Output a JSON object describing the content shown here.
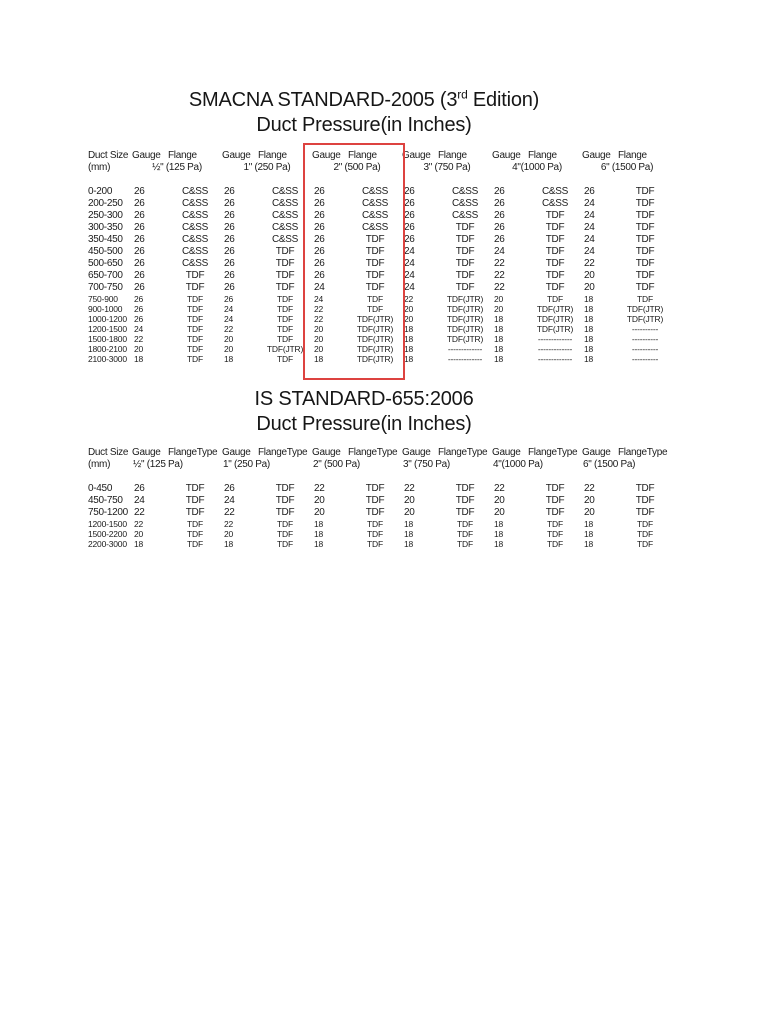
{
  "page": {
    "background": "#ffffff",
    "text_color": "#1b1b1b"
  },
  "highlight": {
    "box_color": "#dd4340",
    "around": "2\" (500 Pa) column group"
  },
  "table1": {
    "title_prefix": "SMACNA STANDARD-2005 (3",
    "title_sup": "rd",
    "title_suffix": " Edition)",
    "subtitle": "Duct Pressure(in Inches)",
    "col_size_label": "Duct Size",
    "col_size_unit": "(mm)",
    "gauge_label": "Gauge",
    "flange_label": "Flange",
    "pressures": [
      "½\" (125 Pa)",
      "1\" (250 Pa)",
      "2\" (500 Pa)",
      "3\" (750 Pa)",
      "4\"(1000 Pa)",
      "6\" (1500 Pa)"
    ],
    "rows_large": [
      {
        "size": "0-200",
        "cells": [
          "26",
          "C&SS",
          "26",
          "C&SS",
          "26",
          "C&SS",
          "26",
          "C&SS",
          "26",
          "C&SS",
          "26",
          "TDF"
        ]
      },
      {
        "size": "200-250",
        "cells": [
          "26",
          "C&SS",
          "26",
          "C&SS",
          "26",
          "C&SS",
          "26",
          "C&SS",
          "26",
          "C&SS",
          "24",
          "TDF"
        ]
      },
      {
        "size": "250-300",
        "cells": [
          "26",
          "C&SS",
          "26",
          "C&SS",
          "26",
          "C&SS",
          "26",
          "C&SS",
          "26",
          "TDF",
          "24",
          "TDF"
        ]
      },
      {
        "size": "300-350",
        "cells": [
          "26",
          "C&SS",
          "26",
          "C&SS",
          "26",
          "C&SS",
          "26",
          "TDF",
          "26",
          "TDF",
          "24",
          "TDF"
        ]
      },
      {
        "size": "350-450",
        "cells": [
          "26",
          "C&SS",
          "26",
          "C&SS",
          "26",
          "TDF",
          "26",
          "TDF",
          "26",
          "TDF",
          "24",
          "TDF"
        ]
      },
      {
        "size": "450-500",
        "cells": [
          "26",
          "C&SS",
          "26",
          "TDF",
          "26",
          "TDF",
          "24",
          "TDF",
          "24",
          "TDF",
          "24",
          "TDF"
        ]
      },
      {
        "size": "500-650",
        "cells": [
          "26",
          "C&SS",
          "26",
          "TDF",
          "26",
          "TDF",
          "24",
          "TDF",
          "22",
          "TDF",
          "22",
          "TDF"
        ]
      },
      {
        "size": "650-700",
        "cells": [
          "26",
          "TDF",
          "26",
          "TDF",
          "26",
          "TDF",
          "24",
          "TDF",
          "22",
          "TDF",
          "20",
          "TDF"
        ]
      },
      {
        "size": "700-750",
        "cells": [
          "26",
          "TDF",
          "26",
          "TDF",
          "24",
          "TDF",
          "24",
          "TDF",
          "22",
          "TDF",
          "20",
          "TDF"
        ]
      }
    ],
    "rows_small": [
      {
        "size": "750-900",
        "cells": [
          "26",
          "TDF",
          "26",
          "TDF",
          "24",
          "TDF",
          "22",
          "TDF(JTR)",
          "20",
          "TDF",
          "18",
          "TDF"
        ]
      },
      {
        "size": "900-1000",
        "cells": [
          "26",
          "TDF",
          "24",
          "TDF",
          "22",
          "TDF",
          "20",
          "TDF(JTR)",
          "20",
          "TDF(JTR)",
          "18",
          "TDF(JTR)"
        ]
      },
      {
        "size": "1000-1200",
        "cells": [
          "26",
          "TDF",
          "24",
          "TDF",
          "22",
          "TDF(JTR)",
          "20",
          "TDF(JTR)",
          "18",
          "TDF(JTR)",
          "18",
          "TDF(JTR)"
        ]
      },
      {
        "size": "1200-1500",
        "cells": [
          "24",
          "TDF",
          "22",
          "TDF",
          "20",
          "TDF(JTR)",
          "18",
          "TDF(JTR)",
          "18",
          "TDF(JTR)",
          "18",
          "----------"
        ]
      },
      {
        "size": "1500-1800",
        "cells": [
          "22",
          "TDF",
          "20",
          "TDF",
          "20",
          "TDF(JTR)",
          "18",
          "TDF(JTR)",
          "18",
          "-------------",
          "18",
          "----------"
        ]
      },
      {
        "size": "1800-2100",
        "cells": [
          "20",
          "TDF",
          "20",
          "TDF(JTR)",
          "20",
          "TDF(JTR)",
          "18",
          "-------------",
          "18",
          "-------------",
          "18",
          "----------"
        ]
      },
      {
        "size": "2100-3000",
        "cells": [
          "18",
          "TDF",
          "18",
          "TDF",
          "18",
          "TDF(JTR)",
          "18",
          "-------------",
          "18",
          "-------------",
          "18",
          "----------"
        ]
      }
    ]
  },
  "table2": {
    "title": "IS STANDARD-655:2006",
    "subtitle": "Duct Pressure(in Inches)",
    "col_size_label": "Duct Size",
    "col_size_unit": "(mm)",
    "gauge_label": "Gauge",
    "flange_label": "FlangeType",
    "pressures": [
      "½\" (125 Pa)",
      "1\" (250 Pa)",
      "2\" (500 Pa)",
      "3\" (750 Pa)",
      "4\"(1000 Pa)",
      "6\" (1500 Pa)"
    ],
    "rows_large": [
      {
        "size": "0-450",
        "cells": [
          "26",
          "TDF",
          "26",
          "TDF",
          "22",
          "TDF",
          "22",
          "TDF",
          "22",
          "TDF",
          "22",
          "TDF"
        ]
      },
      {
        "size": "450-750",
        "cells": [
          "24",
          "TDF",
          "24",
          "TDF",
          "20",
          "TDF",
          "20",
          "TDF",
          "20",
          "TDF",
          "20",
          "TDF"
        ]
      },
      {
        "size": "750-1200",
        "cells": [
          "22",
          "TDF",
          "22",
          "TDF",
          "20",
          "TDF",
          "20",
          "TDF",
          "20",
          "TDF",
          "20",
          "TDF"
        ]
      }
    ],
    "rows_small": [
      {
        "size": "1200-1500",
        "cells": [
          "22",
          "TDF",
          "22",
          "TDF",
          "18",
          "TDF",
          "18",
          "TDF",
          "18",
          "TDF",
          "18",
          "TDF"
        ]
      },
      {
        "size": "1500-2200",
        "cells": [
          "20",
          "TDF",
          "20",
          "TDF",
          "18",
          "TDF",
          "18",
          "TDF",
          "18",
          "TDF",
          "18",
          "TDF"
        ]
      },
      {
        "size": "2200-3000",
        "cells": [
          "18",
          "TDF",
          "18",
          "TDF",
          "18",
          "TDF",
          "18",
          "TDF",
          "18",
          "TDF",
          "18",
          "TDF"
        ]
      }
    ]
  }
}
